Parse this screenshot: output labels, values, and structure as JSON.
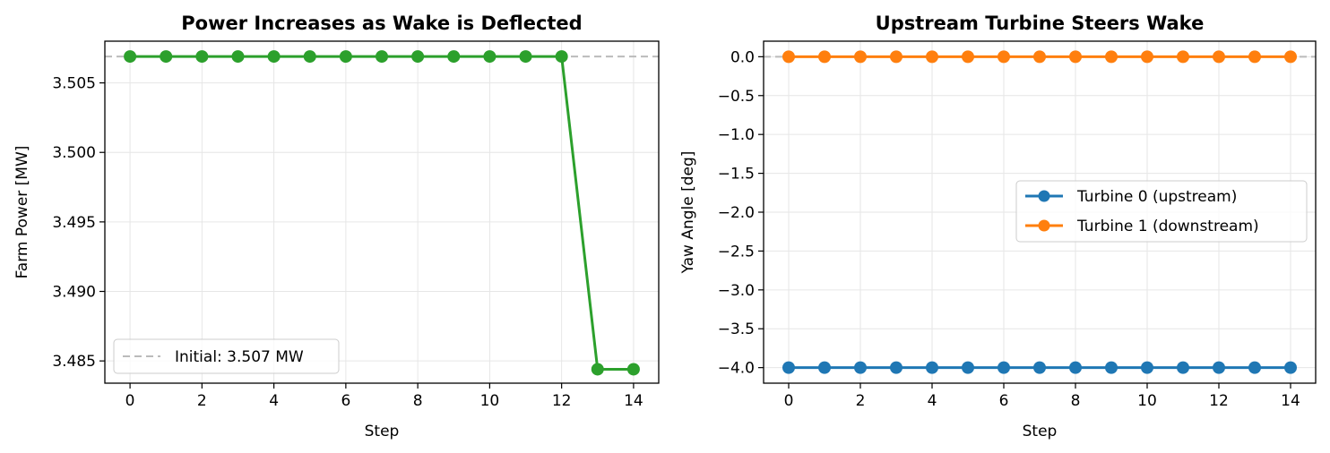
{
  "chart_data": [
    {
      "type": "line",
      "title": "Power Increases as Wake is Deflected",
      "xlabel": "Step",
      "ylabel": "Farm Power [MW]",
      "x": [
        0,
        1,
        2,
        3,
        4,
        5,
        6,
        7,
        8,
        9,
        10,
        11,
        12,
        13,
        14
      ],
      "xlim": [
        -0.7,
        14.7
      ],
      "ylim": [
        3.4834,
        3.508
      ],
      "xticks": [
        "0",
        "2",
        "4",
        "6",
        "8",
        "10",
        "12",
        "14"
      ],
      "yticks": [
        "3.485",
        "3.490",
        "3.495",
        "3.500",
        "3.505"
      ],
      "grid": true,
      "series": [
        {
          "values": [
            3.5069,
            3.5069,
            3.5069,
            3.5069,
            3.5069,
            3.5069,
            3.5069,
            3.5069,
            3.5069,
            3.5069,
            3.5069,
            3.5069,
            3.5069,
            3.4844,
            3.4844
          ],
          "color": "#2ca02c",
          "marker": "circle"
        }
      ],
      "reference_line": {
        "label": "Initial: 3.507 MW",
        "value": 3.5069,
        "color": "#bbbbbb",
        "style": "dashed"
      },
      "legend_position": "lower-left"
    },
    {
      "type": "line",
      "title": "Upstream Turbine Steers Wake",
      "xlabel": "Step",
      "ylabel": "Yaw Angle [deg]",
      "x": [
        0,
        1,
        2,
        3,
        4,
        5,
        6,
        7,
        8,
        9,
        10,
        11,
        12,
        13,
        14
      ],
      "xlim": [
        -0.7,
        14.7
      ],
      "ylim": [
        -4.2,
        0.2
      ],
      "xticks": [
        "0",
        "2",
        "4",
        "6",
        "8",
        "10",
        "12",
        "14"
      ],
      "yticks": [
        "0.0",
        "−0.5",
        "−1.0",
        "−1.5",
        "−2.0",
        "−2.5",
        "−3.0",
        "−3.5",
        "−4.0"
      ],
      "grid": true,
      "series": [
        {
          "name": "Turbine 0 (upstream)",
          "values": [
            -4,
            -4,
            -4,
            -4,
            -4,
            -4,
            -4,
            -4,
            -4,
            -4,
            -4,
            -4,
            -4,
            -4,
            -4
          ],
          "color": "#1f77b4",
          "marker": "circle"
        },
        {
          "name": "Turbine 1 (downstream)",
          "values": [
            0,
            0,
            0,
            0,
            0,
            0,
            0,
            0,
            0,
            0,
            0,
            0,
            0,
            0,
            0
          ],
          "color": "#ff7f0e",
          "marker": "circle"
        }
      ],
      "reference_line": {
        "value": 0,
        "color": "#bbbbbb",
        "style": "dashed"
      },
      "legend_position": "center-right"
    }
  ]
}
